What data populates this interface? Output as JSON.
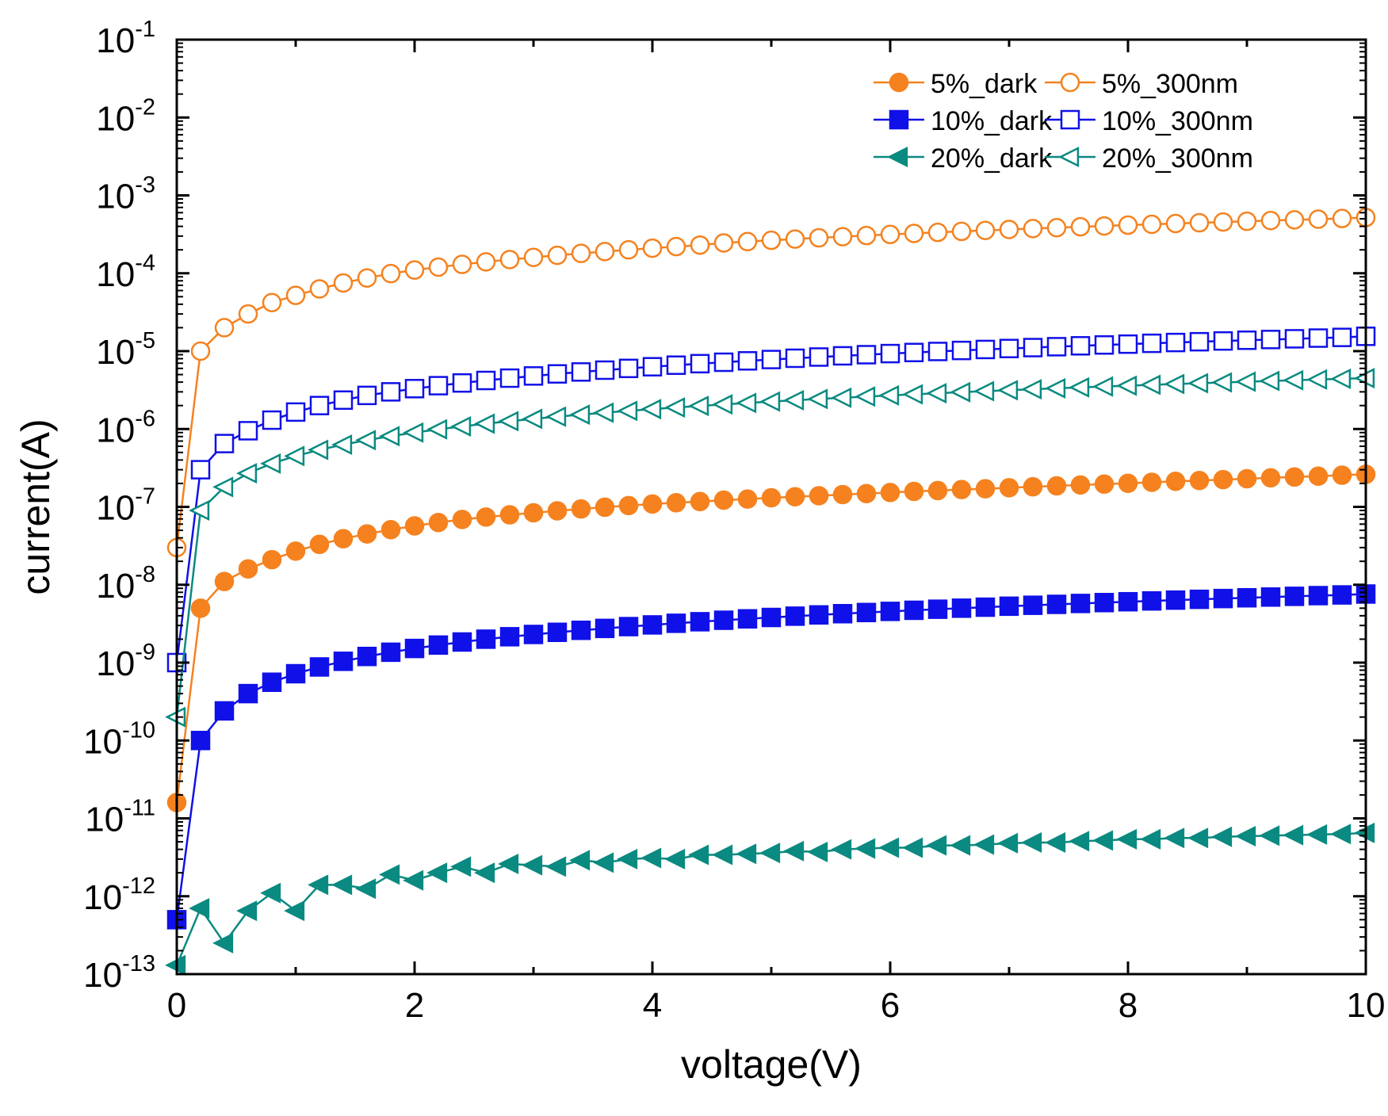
{
  "chart_data": {
    "type": "line",
    "xlabel": "voltage(V)",
    "ylabel": "current(A)",
    "xlim": [
      0,
      10
    ],
    "ylim": [
      1e-13,
      0.1
    ],
    "yscale": "log",
    "grid": false,
    "legend_position": "top-right",
    "x_ticks": [
      0,
      2,
      4,
      6,
      8,
      10
    ],
    "x_tick_labels": [
      "0",
      "2",
      "4",
      "6",
      "8",
      "10"
    ],
    "y_ticks": [
      -13,
      -12,
      -11,
      -10,
      -9,
      -8,
      -7,
      -6,
      -5,
      -4,
      -3,
      -2,
      -1
    ],
    "y_tick_labels": [
      {
        "base": "10",
        "exp": "-13"
      },
      {
        "base": "10",
        "exp": "-12"
      },
      {
        "base": "10",
        "exp": "-11"
      },
      {
        "base": "10",
        "exp": "-10"
      },
      {
        "base": "10",
        "exp": "-9"
      },
      {
        "base": "10",
        "exp": "-8"
      },
      {
        "base": "10",
        "exp": "-7"
      },
      {
        "base": "10",
        "exp": "-6"
      },
      {
        "base": "10",
        "exp": "-5"
      },
      {
        "base": "10",
        "exp": "-4"
      },
      {
        "base": "10",
        "exp": "-3"
      },
      {
        "base": "10",
        "exp": "-2"
      },
      {
        "base": "10",
        "exp": "-1"
      }
    ],
    "x": [
      0,
      0.2,
      0.4,
      0.6,
      0.8,
      1.0,
      1.2,
      1.4,
      1.6,
      1.8,
      2.0,
      2.2,
      2.4,
      2.6,
      2.8,
      3.0,
      3.2,
      3.4,
      3.6,
      3.8,
      4.0,
      4.2,
      4.4,
      4.6,
      4.8,
      5.0,
      5.2,
      5.4,
      5.6,
      5.8,
      6.0,
      6.2,
      6.4,
      6.6,
      6.8,
      7.0,
      7.2,
      7.4,
      7.6,
      7.8,
      8.0,
      8.2,
      8.4,
      8.6,
      8.8,
      9.0,
      9.2,
      9.4,
      9.6,
      9.8,
      10.0
    ],
    "series": [
      {
        "name": "5%_dark",
        "color": "#f5821f",
        "marker": "circle",
        "filled": true,
        "values": [
          1.6e-11,
          5e-09,
          1.1e-08,
          1.6e-08,
          2.1e-08,
          2.7e-08,
          3.3e-08,
          3.9e-08,
          4.5e-08,
          5.1e-08,
          5.7e-08,
          6.3e-08,
          6.9e-08,
          7.4e-08,
          7.9e-08,
          8.4e-08,
          8.9e-08,
          9.4e-08,
          9.9e-08,
          1.04e-07,
          1.09e-07,
          1.13e-07,
          1.17e-07,
          1.22e-07,
          1.26e-07,
          1.31e-07,
          1.35e-07,
          1.39e-07,
          1.44e-07,
          1.48e-07,
          1.53e-07,
          1.58e-07,
          1.62e-07,
          1.67e-07,
          1.71e-07,
          1.76e-07,
          1.81e-07,
          1.86e-07,
          1.91e-07,
          1.96e-07,
          2.01e-07,
          2.07e-07,
          2.13e-07,
          2.18e-07,
          2.24e-07,
          2.3e-07,
          2.36e-07,
          2.42e-07,
          2.48e-07,
          2.55e-07,
          2.62e-07
        ]
      },
      {
        "name": "5%_300nm",
        "color": "#f5821f",
        "marker": "circle",
        "filled": false,
        "values": [
          3e-08,
          1e-05,
          2e-05,
          3e-05,
          4.2e-05,
          5.2e-05,
          6.3e-05,
          7.5e-05,
          8.7e-05,
          9.9e-05,
          0.00011,
          0.00012,
          0.00013,
          0.00014,
          0.00015,
          0.00016,
          0.00017,
          0.00018,
          0.00019,
          0.0002,
          0.00021,
          0.00022,
          0.00023,
          0.000245,
          0.000255,
          0.000265,
          0.000275,
          0.000285,
          0.000295,
          0.000305,
          0.000315,
          0.000325,
          0.000335,
          0.000345,
          0.000355,
          0.000365,
          0.000375,
          0.000385,
          0.000395,
          0.000405,
          0.000415,
          0.000425,
          0.000435,
          0.000445,
          0.000455,
          0.000465,
          0.000475,
          0.000485,
          0.000495,
          0.000505,
          0.00052
        ]
      },
      {
        "name": "10%_dark",
        "color": "#1010e8",
        "marker": "square",
        "filled": true,
        "values": [
          5e-13,
          1e-10,
          2.4e-10,
          4e-10,
          5.6e-10,
          7.2e-10,
          8.8e-10,
          1.04e-09,
          1.2e-09,
          1.36e-09,
          1.52e-09,
          1.68e-09,
          1.84e-09,
          2e-09,
          2.15e-09,
          2.3e-09,
          2.45e-09,
          2.6e-09,
          2.75e-09,
          2.9e-09,
          3.05e-09,
          3.2e-09,
          3.35e-09,
          3.5e-09,
          3.65e-09,
          3.8e-09,
          3.95e-09,
          4.1e-09,
          4.25e-09,
          4.4e-09,
          4.55e-09,
          4.7e-09,
          4.85e-09,
          5e-09,
          5.15e-09,
          5.3e-09,
          5.45e-09,
          5.6e-09,
          5.75e-09,
          5.9e-09,
          6.05e-09,
          6.2e-09,
          6.35e-09,
          6.5e-09,
          6.65e-09,
          6.8e-09,
          6.95e-09,
          7.1e-09,
          7.25e-09,
          7.4e-09,
          7.6e-09
        ]
      },
      {
        "name": "10%_300nm",
        "color": "#1010e8",
        "marker": "square",
        "filled": false,
        "values": [
          1e-09,
          3e-07,
          6.5e-07,
          9.5e-07,
          1.3e-06,
          1.65e-06,
          2e-06,
          2.35e-06,
          2.7e-06,
          3e-06,
          3.3e-06,
          3.6e-06,
          3.9e-06,
          4.2e-06,
          4.5e-06,
          4.8e-06,
          5.1e-06,
          5.4e-06,
          5.7e-06,
          6e-06,
          6.3e-06,
          6.6e-06,
          6.9e-06,
          7.2e-06,
          7.5e-06,
          7.8e-06,
          8.1e-06,
          8.4e-06,
          8.7e-06,
          9e-06,
          9.3e-06,
          9.6e-06,
          9.9e-06,
          1.02e-05,
          1.05e-05,
          1.08e-05,
          1.11e-05,
          1.14e-05,
          1.17e-05,
          1.2e-05,
          1.23e-05,
          1.26e-05,
          1.29e-05,
          1.32e-05,
          1.35e-05,
          1.38e-05,
          1.41e-05,
          1.44e-05,
          1.47e-05,
          1.5e-05,
          1.55e-05
        ]
      },
      {
        "name": "20%_dark",
        "color": "#0a8a80",
        "marker": "triangle-left",
        "filled": true,
        "values": [
          1.3e-13,
          7e-13,
          2.5e-13,
          6.5e-13,
          1.1e-12,
          6.5e-13,
          1.4e-12,
          1.4e-12,
          1.25e-12,
          1.9e-12,
          1.6e-12,
          2e-12,
          2.4e-12,
          2e-12,
          2.6e-12,
          2.5e-12,
          2.4e-12,
          2.9e-12,
          2.7e-12,
          3e-12,
          3.1e-12,
          3e-12,
          3.4e-12,
          3.4e-12,
          3.5e-12,
          3.6e-12,
          3.8e-12,
          3.7e-12,
          4e-12,
          4.1e-12,
          4.2e-12,
          4.2e-12,
          4.5e-12,
          4.5e-12,
          4.6e-12,
          4.8e-12,
          4.9e-12,
          4.9e-12,
          5.1e-12,
          5.2e-12,
          5.4e-12,
          5.4e-12,
          5.6e-12,
          5.6e-12,
          5.8e-12,
          5.9e-12,
          6e-12,
          6.1e-12,
          6.2e-12,
          6.3e-12,
          6.5e-12
        ]
      },
      {
        "name": "20%_300nm",
        "color": "#0a8a80",
        "marker": "triangle-left",
        "filled": false,
        "values": [
          2e-10,
          9e-08,
          1.8e-07,
          2.7e-07,
          3.6e-07,
          4.5e-07,
          5.4e-07,
          6.3e-07,
          7.2e-07,
          8.1e-07,
          9e-07,
          9.9e-07,
          1.08e-06,
          1.17e-06,
          1.26e-06,
          1.35e-06,
          1.44e-06,
          1.53e-06,
          1.62e-06,
          1.71e-06,
          1.8e-06,
          1.89e-06,
          1.98e-06,
          2.07e-06,
          2.16e-06,
          2.25e-06,
          2.34e-06,
          2.43e-06,
          2.52e-06,
          2.61e-06,
          2.7e-06,
          2.79e-06,
          2.88e-06,
          2.97e-06,
          3.06e-06,
          3.15e-06,
          3.24e-06,
          3.33e-06,
          3.42e-06,
          3.51e-06,
          3.6e-06,
          3.69e-06,
          3.78e-06,
          3.87e-06,
          3.96e-06,
          4.05e-06,
          4.14e-06,
          4.23e-06,
          4.32e-06,
          4.41e-06,
          4.5e-06
        ]
      }
    ],
    "legend_rows": [
      [
        "5%_dark",
        "5%_300nm"
      ],
      [
        "10%_dark",
        "10%_300nm"
      ],
      [
        "20%_dark",
        "20%_300nm"
      ]
    ]
  }
}
